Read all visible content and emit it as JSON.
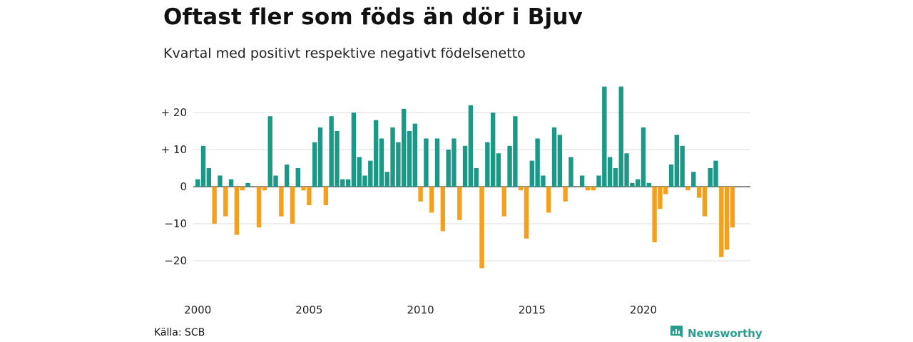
{
  "title": "Oftast fler som föds än dör i Bjuv",
  "subtitle": "Kvartal med positivt respektive negativt födelsenetto",
  "source": "Källa: SCB",
  "brand": "Newsworthy",
  "colors": {
    "positive": "#1a9988",
    "negative": "#f5a01d",
    "grid": "#dddddd",
    "brand": "#2a9d8f"
  },
  "chart_data": {
    "type": "bar",
    "x_start_year": 2000,
    "periods_per_year": 4,
    "ylim": [
      -25,
      27
    ],
    "yticks": [
      20,
      10,
      0,
      -10,
      -20
    ],
    "ytick_labels": [
      "+ 20",
      "+ 10",
      "0",
      "−10",
      "−20"
    ],
    "xtick_years": [
      2000,
      2005,
      2010,
      2015,
      2020
    ],
    "xtick_labels": [
      "2000",
      "2005",
      "2010",
      "2015",
      "2020"
    ],
    "grid": true,
    "values": [
      2,
      11,
      5,
      -10,
      3,
      -8,
      2,
      -13,
      -1,
      1,
      0,
      -11,
      -1,
      19,
      3,
      -8,
      6,
      -10,
      5,
      -1,
      -5,
      12,
      16,
      -5,
      19,
      15,
      2,
      2,
      20,
      8,
      3,
      7,
      18,
      13,
      4,
      16,
      12,
      21,
      15,
      17,
      -4,
      13,
      -7,
      13,
      -12,
      10,
      13,
      -9,
      11,
      22,
      5,
      -22,
      12,
      20,
      9,
      -8,
      11,
      19,
      -1,
      -14,
      7,
      13,
      3,
      -7,
      16,
      14,
      -4,
      8,
      0,
      3,
      -1,
      -1,
      3,
      27,
      8,
      5,
      27,
      9,
      1,
      2,
      16,
      1,
      -15,
      -6,
      -2,
      6,
      14,
      11,
      -1,
      4,
      -3,
      -8,
      5,
      7,
      -19,
      -17,
      -11
    ]
  }
}
